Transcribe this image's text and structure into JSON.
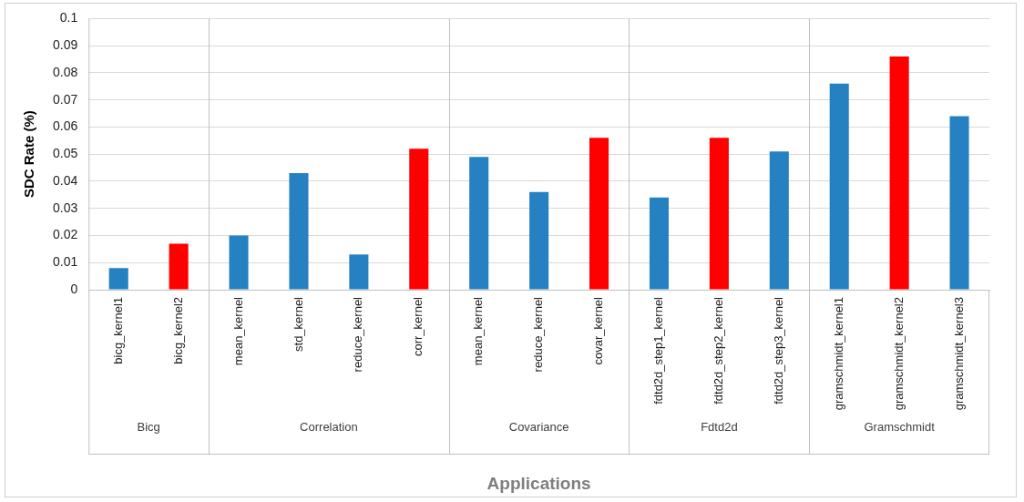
{
  "chart_data": {
    "type": "bar",
    "ylabel": "SDC Rate (%)",
    "xlabel": "Applications",
    "categories": [
      "bicg_kernel1",
      "bicg_kernel2",
      "mean_kernel",
      "std_kernel",
      "reduce_kernel",
      "corr_kernel",
      "mean_kernel",
      "reduce_kernel",
      "covar_kernel",
      "fdtd2d_step1_kernel",
      "fdtd2d_step2_kernel",
      "fdtd2d_step3_kernel",
      "gramschmidt_kernel1",
      "gramschmidt_kernel2",
      "gramschmidt_kernel3"
    ],
    "values": [
      0.008,
      0.017,
      0.02,
      0.043,
      0.013,
      0.052,
      0.049,
      0.036,
      0.056,
      0.034,
      0.056,
      0.051,
      0.076,
      0.086,
      0.064
    ],
    "colors": [
      "#2681c2",
      "#ff0000",
      "#2681c2",
      "#2681c2",
      "#2681c2",
      "#ff0000",
      "#2681c2",
      "#2681c2",
      "#ff0000",
      "#2681c2",
      "#ff0000",
      "#2681c2",
      "#2681c2",
      "#ff0000",
      "#2681c2"
    ],
    "ylim": [
      0,
      0.1
    ],
    "yticks": [
      0,
      0.01,
      0.02,
      0.03,
      0.04,
      0.05,
      0.06,
      0.07,
      0.08,
      0.09,
      0.1
    ],
    "grid": "y",
    "legend": false,
    "annotations": [
      "Bicg",
      "Correlation",
      "Covariance",
      "Fdtd2d",
      "Gramschmidt"
    ]
  }
}
